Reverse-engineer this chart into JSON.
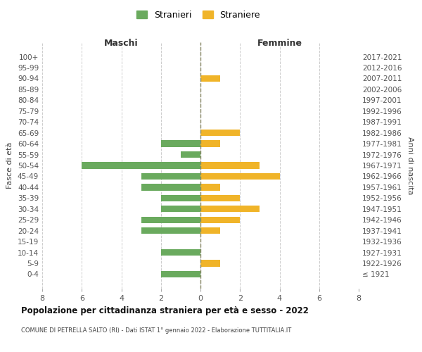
{
  "age_groups": [
    "100+",
    "95-99",
    "90-94",
    "85-89",
    "80-84",
    "75-79",
    "70-74",
    "65-69",
    "60-64",
    "55-59",
    "50-54",
    "45-49",
    "40-44",
    "35-39",
    "30-34",
    "25-29",
    "20-24",
    "15-19",
    "10-14",
    "5-9",
    "0-4"
  ],
  "birth_years": [
    "≤ 1921",
    "1922-1926",
    "1927-1931",
    "1932-1936",
    "1937-1941",
    "1942-1946",
    "1947-1951",
    "1952-1956",
    "1957-1961",
    "1962-1966",
    "1967-1971",
    "1972-1976",
    "1977-1981",
    "1982-1986",
    "1987-1991",
    "1992-1996",
    "1997-2001",
    "2002-2006",
    "2007-2011",
    "2012-2016",
    "2017-2021"
  ],
  "males": [
    0,
    0,
    0,
    0,
    0,
    0,
    0,
    0,
    2,
    1,
    6,
    3,
    3,
    2,
    2,
    3,
    3,
    0,
    2,
    0,
    2
  ],
  "females": [
    0,
    0,
    1,
    0,
    0,
    0,
    0,
    2,
    1,
    0,
    3,
    4,
    1,
    2,
    3,
    2,
    1,
    0,
    0,
    1,
    0
  ],
  "male_color": "#6aaa5e",
  "female_color": "#f0b429",
  "title": "Popolazione per cittadinanza straniera per età e sesso - 2022",
  "subtitle": "COMUNE DI PETRELLA SALTO (RI) - Dati ISTAT 1° gennaio 2022 - Elaborazione TUTTITALIA.IT",
  "legend_male": "Stranieri",
  "legend_female": "Straniere",
  "xlabel_left": "Maschi",
  "xlabel_right": "Femmine",
  "ylabel_left": "Fasce di età",
  "ylabel_right": "Anni di nascita",
  "xlim": 8,
  "background_color": "#ffffff",
  "grid_color": "#cccccc"
}
